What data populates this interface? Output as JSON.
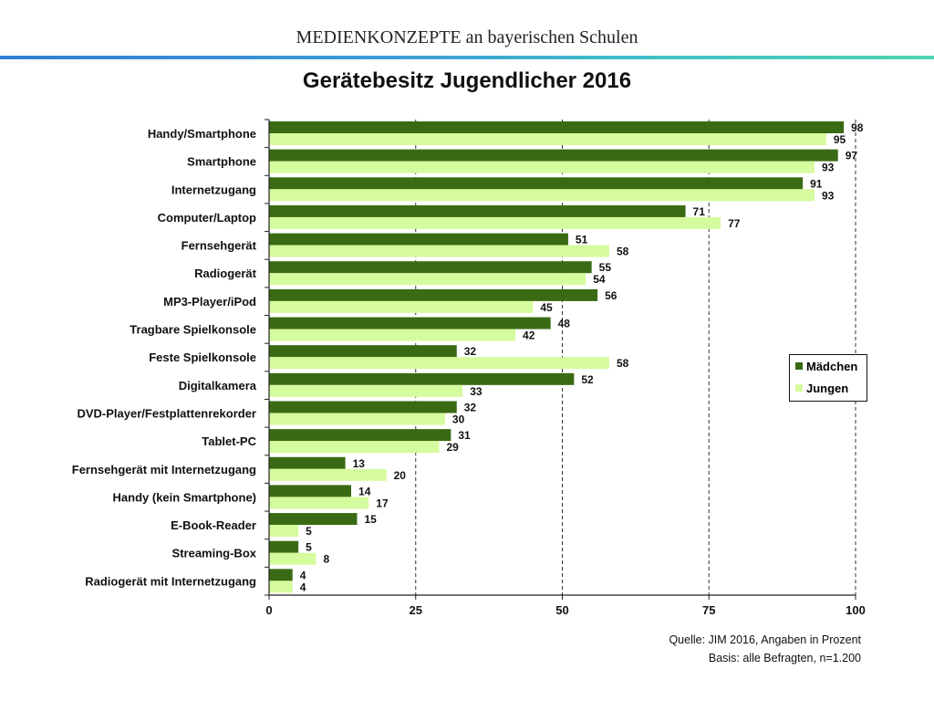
{
  "header": {
    "title": "MEDIENKONZEPTE an bayerischen Schulen"
  },
  "chart_data": {
    "type": "bar",
    "orientation": "horizontal",
    "title": "Gerätebesitz Jugendlicher 2016",
    "categories": [
      "Handy/Smartphone",
      "Smartphone",
      "Internetzugang",
      "Computer/Laptop",
      "Fernsehgerät",
      "Radiogerät",
      "MP3-Player/iPod",
      "Tragbare Spielkonsole",
      "Feste Spielkonsole",
      "Digitalkamera",
      "DVD-Player/Festplattenrekorder",
      "Tablet-PC",
      "Fernsehgerät mit Internetzugang",
      "Handy (kein Smartphone)",
      "E-Book-Reader",
      "Streaming-Box",
      "Radiogerät mit Internetzugang"
    ],
    "series": [
      {
        "name": "Mädchen",
        "color": "#3a6b14",
        "values": [
          98,
          97,
          91,
          71,
          51,
          55,
          56,
          48,
          32,
          52,
          32,
          31,
          13,
          14,
          15,
          5,
          4
        ]
      },
      {
        "name": "Jungen",
        "color": "#d6fb9e",
        "values": [
          95,
          93,
          93,
          77,
          58,
          54,
          45,
          42,
          58,
          33,
          30,
          29,
          20,
          17,
          5,
          8,
          4
        ]
      }
    ],
    "xlim": [
      0,
      100
    ],
    "xticks": [
      "0",
      "25",
      "50",
      "75",
      "100"
    ],
    "grid": "dashed vertical at 25, 50, 75, 100",
    "legend_position": "right"
  },
  "source": {
    "line1": "Quelle: JIM 2016, Angaben in Prozent",
    "line2": "Basis: alle Befragten, n=1.200"
  }
}
